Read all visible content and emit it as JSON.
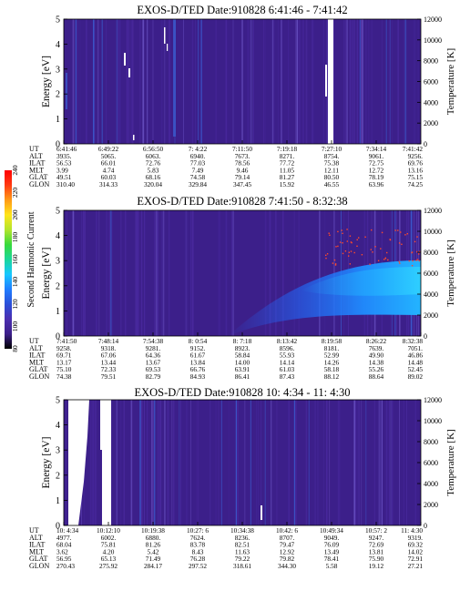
{
  "colors": {
    "background_dark": "#3c1f8a",
    "background_mid": "#4a2aa0",
    "stripe_light": "#6a52c4",
    "stripe_blue": "#3b63d6",
    "enhancement_blue": "#1f6bff",
    "enhancement_cyan": "#23b4ff",
    "data_gap": "#ffffff",
    "dots": "#ff4a2a"
  },
  "colorbar": {
    "label": "Second Harmonic Current",
    "ticks": [
      "240",
      "220",
      "200",
      "180",
      "160",
      "140",
      "120",
      "100",
      "80"
    ],
    "stops": [
      "#000000",
      "#3c1f8a",
      "#4b2fb0",
      "#2a4fd8",
      "#1f7dff",
      "#17c7ff",
      "#1ad79a",
      "#38d93c",
      "#b3e52d",
      "#ffe51a",
      "#ff9a16",
      "#ff3b12",
      "#ff0000"
    ]
  },
  "chart_data": [
    {
      "type": "heatmap",
      "title": "EXOS-D/TED   Date:910828  6:41:46 - 7:41:42",
      "ylabel": "Energy [eV]",
      "y2label": "Temperature [K]",
      "ylim": [
        0,
        5
      ],
      "y2lim": [
        0,
        12000
      ],
      "yticks": [
        "0",
        "1",
        "2",
        "3",
        "4",
        "5"
      ],
      "y2ticks": [
        "0",
        "2000",
        "4000",
        "6000",
        "8000",
        "10000",
        "12000"
      ],
      "row_labels": [
        "UT",
        "ALT",
        "ILAT",
        "MLT",
        "GLAT",
        "GLON"
      ],
      "columns": [
        [
          "6:41:46",
          "3935.",
          "56.53",
          "3.99",
          "49.51",
          "310.40"
        ],
        [
          "6:49:22",
          "5065.",
          "66.01",
          "4.74",
          "60.03",
          "314.33"
        ],
        [
          "6:56:50",
          "6063.",
          "72.76",
          "5.83",
          "68.16",
          "320.04"
        ],
        [
          "7: 4:22",
          "6940.",
          "77.03",
          "7.49",
          "74.58",
          "329.84"
        ],
        [
          "7:11:50",
          "7673.",
          "78.56",
          "9.46",
          "79.14",
          "347.45"
        ],
        [
          "7:19:18",
          "8271.",
          "77.72",
          "11.05",
          "81.27",
          "15.92"
        ],
        [
          "7:27:10",
          "8754.",
          "75.38",
          "12.11",
          "80.50",
          "46.55"
        ],
        [
          "7:34:14",
          "9061.",
          "72.75",
          "12.72",
          "78.19",
          "63.96"
        ],
        [
          "7:41:42",
          "9256.",
          "69.76",
          "13.16",
          "75.15",
          "74.25"
        ]
      ],
      "data_gaps": [
        "7:27:10"
      ]
    },
    {
      "type": "heatmap",
      "title": "EXOS-D/TED   Date:910828  7:41:50 - 8:32:38",
      "ylabel": "Energy [eV]",
      "y2label": "Temperature [K]",
      "ylim": [
        0,
        5
      ],
      "y2lim": [
        0,
        12000
      ],
      "yticks": [
        "0",
        "1",
        "2",
        "3",
        "4",
        "5"
      ],
      "y2ticks": [
        "0",
        "2000",
        "4000",
        "6000",
        "8000",
        "10000",
        "12000"
      ],
      "row_labels": [
        "UT",
        "ALT",
        "ILAT",
        "MLT",
        "GLAT",
        "GLON"
      ],
      "columns": [
        [
          "7:41:50",
          "9258.",
          "69.71",
          "13.17",
          "75.10",
          "74.38"
        ],
        [
          "7:48:14",
          "9318.",
          "67.06",
          "13.44",
          "72.33",
          "79.51"
        ],
        [
          "7:54:38",
          "9281.",
          "64.36",
          "13.67",
          "69.53",
          "82.79"
        ],
        [
          "8: 0:54",
          "9152.",
          "61.67",
          "13.84",
          "66.76",
          "84.93"
        ],
        [
          "8: 7:18",
          "8923.",
          "58.84",
          "14.00",
          "63.91",
          "86.41"
        ],
        [
          "8:13:42",
          "8596.",
          "55.93",
          "14.14",
          "61.03",
          "87.43"
        ],
        [
          "8:19:58",
          "8181.",
          "52.99",
          "14.26",
          "58.18",
          "88.12"
        ],
        [
          "8:26:22",
          "7639.",
          "49.90",
          "14.38",
          "55.26",
          "88.64"
        ],
        [
          "8:32:38",
          "7051.",
          "46.86",
          "14.48",
          "52.45",
          "89.02"
        ]
      ],
      "data_gaps": []
    },
    {
      "type": "heatmap",
      "title": "EXOS-D/TED   Date:910828  10: 4:34 - 11: 4:30",
      "ylabel": "Energy [eV]",
      "y2label": "Temperature [K]",
      "ylim": [
        0,
        5
      ],
      "y2lim": [
        0,
        12000
      ],
      "yticks": [
        "0",
        "1",
        "2",
        "3",
        "4",
        "5"
      ],
      "y2ticks": [
        "0",
        "2000",
        "4000",
        "6000",
        "8000",
        "10000",
        "12000"
      ],
      "row_labels": [
        "UT",
        "ALT",
        "ILAT",
        "MLT",
        "GLAT",
        "GLON"
      ],
      "columns": [
        [
          "10: 4:34",
          "4977.",
          "68.04",
          "3.62",
          "56.95",
          "270.43"
        ],
        [
          "10:12:10",
          "6002.",
          "75.81",
          "4.20",
          "65.13",
          "275.92"
        ],
        [
          "10:19:38",
          "6880.",
          "81.26",
          "5.42",
          "71.49",
          "284.17"
        ],
        [
          "10:27: 6",
          "7624.",
          "83.78",
          "8.43",
          "76.28",
          "297.52"
        ],
        [
          "10:34:38",
          "8236.",
          "82.51",
          "11.63",
          "79.22",
          "318.61"
        ],
        [
          "10:42: 6",
          "8707.",
          "79.47",
          "12.92",
          "79.82",
          "344.30"
        ],
        [
          "10:49:34",
          "9049.",
          "76.09",
          "13.49",
          "78.41",
          "5.58"
        ],
        [
          "10:57: 2",
          "9247.",
          "72.69",
          "13.81",
          "75.90",
          "19.12"
        ],
        [
          "11: 4:30",
          "9319.",
          "69.32",
          "14.02",
          "72.91",
          "27.21"
        ]
      ],
      "data_gaps": [
        "10: 4:34",
        "10:12:10"
      ]
    }
  ]
}
